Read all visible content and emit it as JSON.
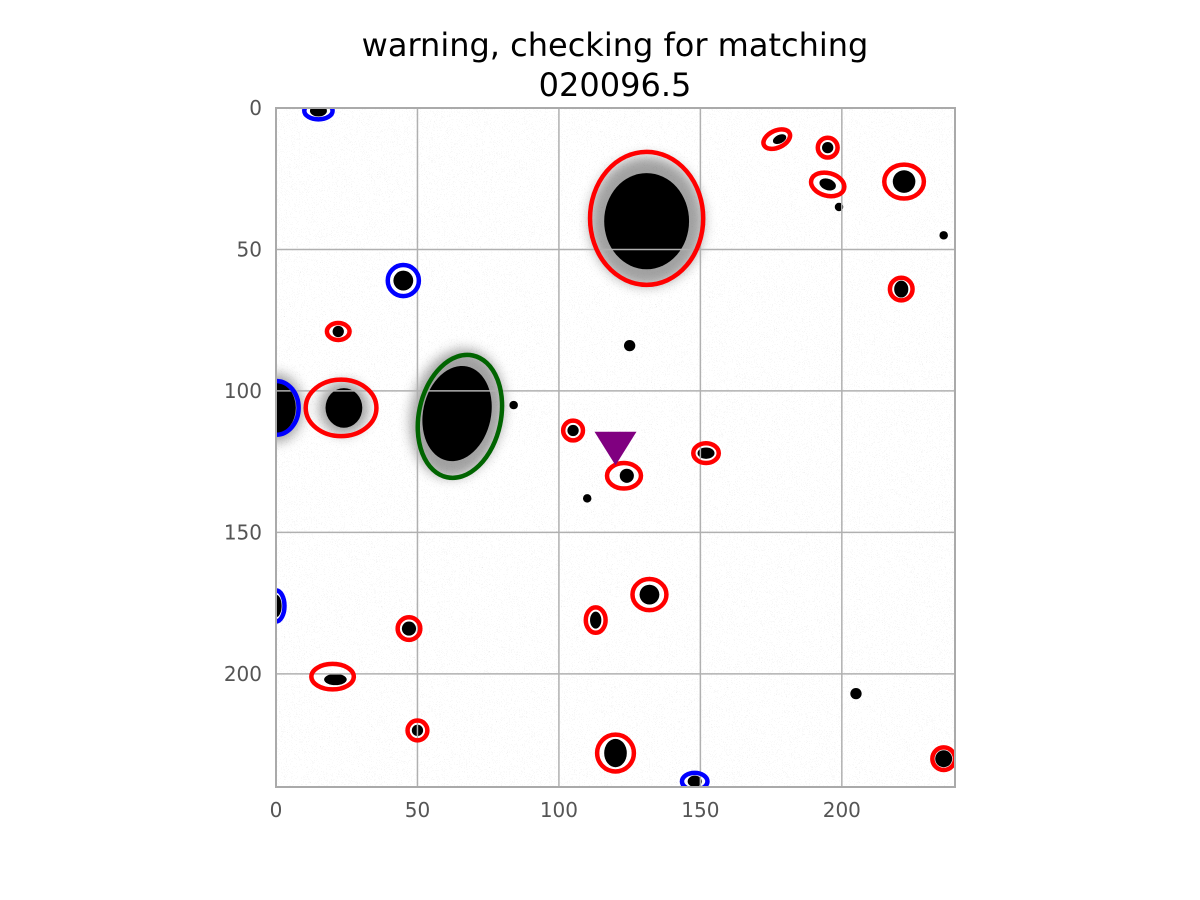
{
  "chart_data": {
    "type": "image",
    "title": "warning, checking for matching",
    "subtitle": "020096.5",
    "xlabel": "",
    "ylabel": "",
    "xlim": [
      0,
      240
    ],
    "ylim": [
      240,
      0
    ],
    "y_inverted": true,
    "xticks": [
      0,
      50,
      100,
      150,
      200
    ],
    "yticks": [
      0,
      50,
      100,
      150,
      200
    ],
    "grid": true,
    "colors": {
      "background_noise": "#9a9a9a",
      "source": "#000000",
      "grid": "#b0b0b0",
      "spine": "#aaaaaa",
      "ticks": "#555555",
      "red": "#ff0000",
      "blue": "#0000ff",
      "green": "#006400",
      "marker": "#800080"
    },
    "sources": [
      {
        "x": 131,
        "y": 40,
        "rx": 15,
        "ry": 17,
        "rot": 0
      },
      {
        "x": 64,
        "y": 108,
        "rx": 12,
        "ry": 17,
        "rot": 12
      },
      {
        "x": 24,
        "y": 106,
        "rx": 6.5,
        "ry": 7,
        "rot": 0
      },
      {
        "x": 0,
        "y": 106,
        "rx": 7,
        "ry": 9,
        "rot": 0
      },
      {
        "x": 222,
        "y": 26,
        "rx": 4,
        "ry": 4,
        "rot": 0
      },
      {
        "x": 45,
        "y": 61,
        "rx": 3.5,
        "ry": 3.5,
        "rot": 0
      },
      {
        "x": 120,
        "y": 228,
        "rx": 4,
        "ry": 5,
        "rot": 0
      },
      {
        "x": 132,
        "y": 172,
        "rx": 3.5,
        "ry": 3.5,
        "rot": 0
      },
      {
        "x": 221,
        "y": 64,
        "rx": 2.5,
        "ry": 3,
        "rot": 0
      },
      {
        "x": 124,
        "y": 130,
        "rx": 2.5,
        "ry": 2.5,
        "rot": 0
      },
      {
        "x": 113,
        "y": 181,
        "rx": 2,
        "ry": 3,
        "rot": 0
      },
      {
        "x": 47,
        "y": 184,
        "rx": 2.5,
        "ry": 2.5,
        "rot": 0
      },
      {
        "x": 21,
        "y": 202,
        "rx": 4,
        "ry": 2,
        "rot": 0
      },
      {
        "x": 195,
        "y": 27,
        "rx": 3,
        "ry": 2,
        "rot": 20
      },
      {
        "x": 236,
        "y": 230,
        "rx": 3,
        "ry": 3,
        "rot": 0
      },
      {
        "x": 50,
        "y": 220,
        "rx": 2,
        "ry": 2,
        "rot": 0
      },
      {
        "x": 152,
        "y": 122,
        "rx": 3,
        "ry": 2,
        "rot": 0
      },
      {
        "x": 195,
        "y": 14,
        "rx": 2,
        "ry": 2,
        "rot": 0
      },
      {
        "x": 178,
        "y": 11,
        "rx": 2.5,
        "ry": 1.5,
        "rot": -25
      },
      {
        "x": 105,
        "y": 114,
        "rx": 2,
        "ry": 2,
        "rot": 0
      },
      {
        "x": 22,
        "y": 79,
        "rx": 2,
        "ry": 2,
        "rot": 0
      },
      {
        "x": 148,
        "y": 238,
        "rx": 2.5,
        "ry": 2,
        "rot": 0
      },
      {
        "x": 15,
        "y": 1,
        "rx": 3,
        "ry": 2,
        "rot": 0
      },
      {
        "x": 0,
        "y": 176,
        "rx": 2,
        "ry": 4,
        "rot": 0
      },
      {
        "x": 125,
        "y": 84,
        "rx": 2,
        "ry": 2,
        "rot": 0
      },
      {
        "x": 84,
        "y": 105,
        "rx": 1.5,
        "ry": 1.5,
        "rot": 0
      },
      {
        "x": 110,
        "y": 138,
        "rx": 1.5,
        "ry": 1.5,
        "rot": 0
      },
      {
        "x": 205,
        "y": 207,
        "rx": 2,
        "ry": 2,
        "rot": 0
      },
      {
        "x": 236,
        "y": 45,
        "rx": 1.5,
        "ry": 1.5,
        "rot": 0
      },
      {
        "x": 199,
        "y": 35,
        "rx": 1.5,
        "ry": 1.5,
        "rot": 0
      }
    ],
    "ellipses": [
      {
        "color": "red",
        "x": 131,
        "y": 39,
        "rx": 20,
        "ry": 23.5,
        "rot": 0
      },
      {
        "color": "green",
        "x": 65,
        "y": 109,
        "rx": 14.5,
        "ry": 22,
        "rot": 12
      },
      {
        "color": "red",
        "x": 23,
        "y": 106,
        "rx": 12.5,
        "ry": 10,
        "rot": 0
      },
      {
        "color": "blue",
        "x": 0,
        "y": 106,
        "rx": 8,
        "ry": 9.5,
        "rot": 0
      },
      {
        "color": "red",
        "x": 222,
        "y": 26,
        "rx": 7,
        "ry": 6,
        "rot": 0
      },
      {
        "color": "blue",
        "x": 45,
        "y": 61,
        "rx": 5.5,
        "ry": 5.5,
        "rot": 0
      },
      {
        "color": "red",
        "x": 120,
        "y": 228,
        "rx": 6.5,
        "ry": 6.5,
        "rot": 0
      },
      {
        "color": "red",
        "x": 132,
        "y": 172,
        "rx": 6,
        "ry": 5.5,
        "rot": 0
      },
      {
        "color": "red",
        "x": 221,
        "y": 64,
        "rx": 4,
        "ry": 4,
        "rot": 0
      },
      {
        "color": "red",
        "x": 123,
        "y": 130,
        "rx": 6,
        "ry": 4.5,
        "rot": 0
      },
      {
        "color": "red",
        "x": 113,
        "y": 181,
        "rx": 3.5,
        "ry": 4.5,
        "rot": 0
      },
      {
        "color": "red",
        "x": 47,
        "y": 184,
        "rx": 4,
        "ry": 4,
        "rot": 0
      },
      {
        "color": "red",
        "x": 20,
        "y": 201,
        "rx": 7.5,
        "ry": 4.5,
        "rot": 0
      },
      {
        "color": "red",
        "x": 195,
        "y": 27,
        "rx": 6,
        "ry": 4,
        "rot": 15
      },
      {
        "color": "red",
        "x": 236,
        "y": 230,
        "rx": 4,
        "ry": 4,
        "rot": 0
      },
      {
        "color": "red",
        "x": 50,
        "y": 220,
        "rx": 3.5,
        "ry": 3.5,
        "rot": 0
      },
      {
        "color": "red",
        "x": 152,
        "y": 122,
        "rx": 4.5,
        "ry": 3.5,
        "rot": 0
      },
      {
        "color": "red",
        "x": 195,
        "y": 14,
        "rx": 3.5,
        "ry": 3.5,
        "rot": 0
      },
      {
        "color": "red",
        "x": 177,
        "y": 11,
        "rx": 5,
        "ry": 3,
        "rot": -25
      },
      {
        "color": "red",
        "x": 105,
        "y": 114,
        "rx": 3.5,
        "ry": 3.5,
        "rot": 0
      },
      {
        "color": "red",
        "x": 22,
        "y": 79,
        "rx": 4,
        "ry": 3,
        "rot": 0
      },
      {
        "color": "blue",
        "x": 148,
        "y": 238,
        "rx": 4.5,
        "ry": 3,
        "rot": 0
      },
      {
        "color": "blue",
        "x": 15,
        "y": 1,
        "rx": 5,
        "ry": 3,
        "rot": 0
      },
      {
        "color": "blue",
        "x": 0,
        "y": 176,
        "rx": 3,
        "ry": 5.5,
        "rot": 0
      }
    ],
    "markers": [
      {
        "shape": "triangle-down",
        "color": "marker",
        "x": 120,
        "y": 120
      }
    ]
  }
}
